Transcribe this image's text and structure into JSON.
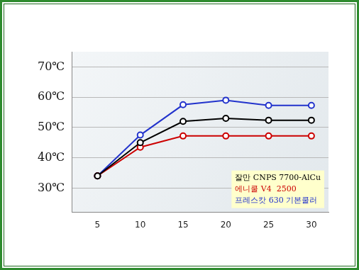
{
  "chart_data": {
    "type": "line",
    "x": [
      5,
      10,
      15,
      20,
      25,
      30
    ],
    "xlim": [
      2,
      32
    ],
    "xticks": [
      5,
      10,
      15,
      20,
      25,
      30
    ],
    "ylim": [
      22,
      75
    ],
    "yticks": [
      {
        "value": 30,
        "label": "30℃"
      },
      {
        "value": 40,
        "label": "40℃"
      },
      {
        "value": 50,
        "label": "50℃"
      },
      {
        "value": 60,
        "label": "60℃"
      },
      {
        "value": 70,
        "label": "70℃"
      }
    ],
    "grid": true,
    "legend": "bottom-right",
    "marker": "circle",
    "series": [
      {
        "name": "잘만 CNPS 7700-AlCu",
        "color": "#000000",
        "values": [
          34,
          45,
          52,
          53,
          52.4,
          52.4
        ]
      },
      {
        "name": "에니쿨 V4  2500",
        "color": "#cc0000",
        "values": [
          34,
          43.5,
          47.2,
          47.2,
          47.2,
          47.2
        ]
      },
      {
        "name": "프레스캇 630 기본쿨러",
        "color": "#2233cc",
        "values": [
          34,
          47.5,
          57.5,
          59,
          57.3,
          57.3
        ]
      }
    ]
  }
}
